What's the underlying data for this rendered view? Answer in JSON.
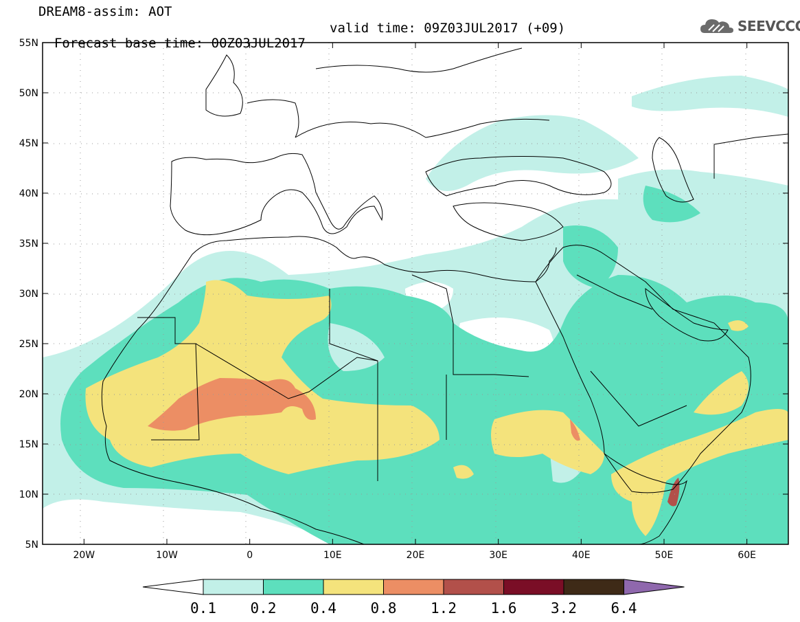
{
  "header": {
    "line1": "DREAM8-assim: AOT",
    "line2": "Forecast base time: 00Z03JUL2017",
    "valid": "valid time: 09Z03JUL2017 (+09)"
  },
  "logo": {
    "text": "SEEVCCC",
    "icon": "cloud-icon"
  },
  "map": {
    "lon_range": [
      -25,
      65
    ],
    "lat_range": [
      5,
      55
    ],
    "grid": "dotted",
    "lat_ticks": [
      "55N",
      "50N",
      "45N",
      "40N",
      "35N",
      "30N",
      "25N",
      "20N",
      "15N",
      "10N",
      "5N"
    ],
    "lon_ticks": [
      "20W",
      "10W",
      "0",
      "10E",
      "20E",
      "30E",
      "40E",
      "50E",
      "60E"
    ]
  },
  "colorbar": {
    "labels": [
      "0.1",
      "0.2",
      "0.4",
      "0.8",
      "1.2",
      "1.6",
      "3.2",
      "6.4"
    ],
    "colors": [
      "#ffffff",
      "#c2f0e8",
      "#5ddfbd",
      "#f4e37c",
      "#ec8e64",
      "#b2504a",
      "#7a0e26",
      "#3e2a17",
      "#8f68ad"
    ]
  }
}
